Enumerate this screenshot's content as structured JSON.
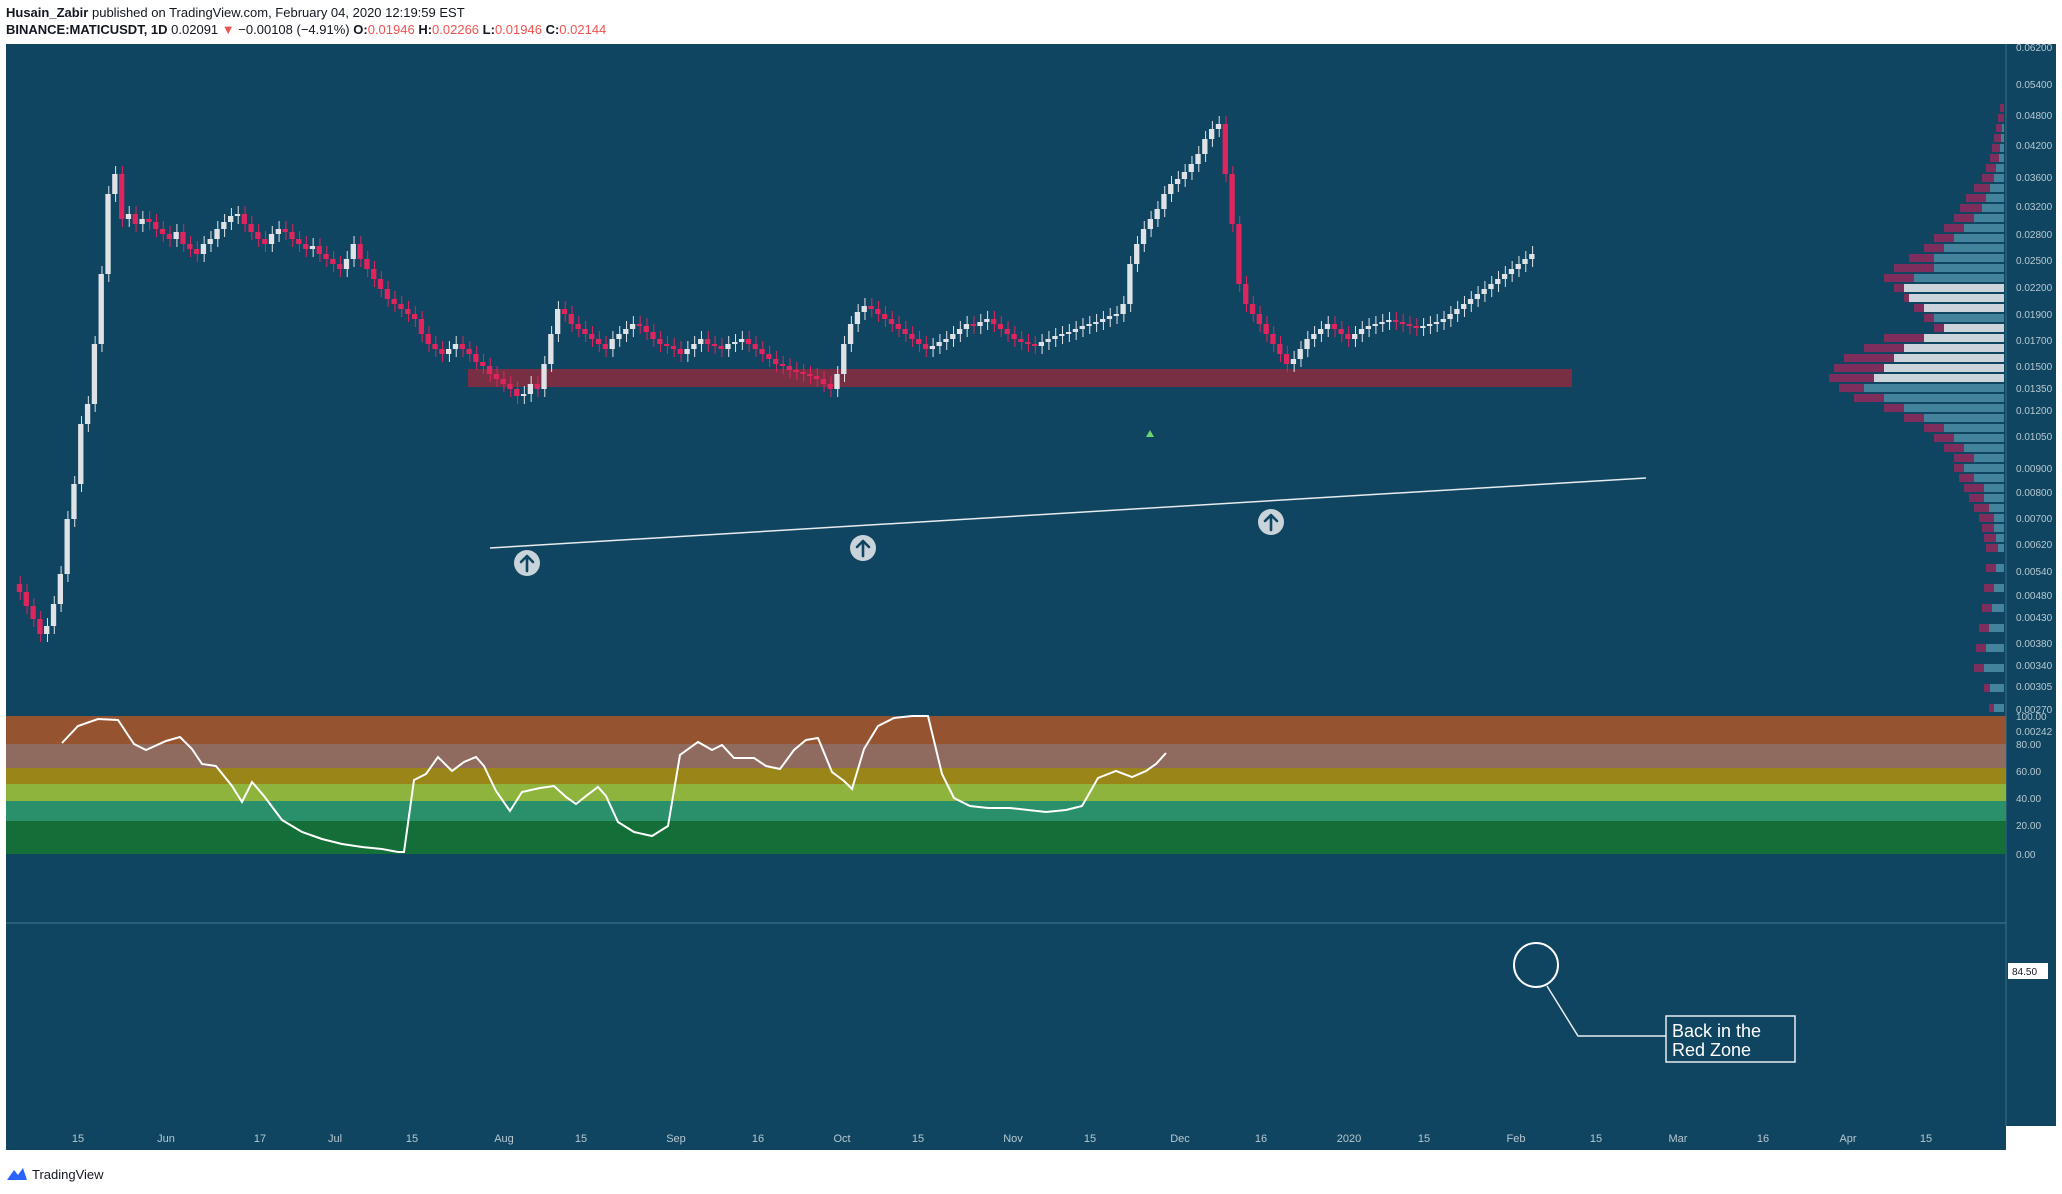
{
  "header": {
    "author": "Husain_Zabir",
    "published": "published on TradingView.com, February 04, 2020 12:19:59 EST",
    "symbol": "BINANCE:MATICUSDT, 1D",
    "last": "0.02091",
    "arrow": "▼",
    "change": "−0.00108 (−4.91%)",
    "open_label": "O:",
    "open": "0.01946",
    "high_label": "H:",
    "high": "0.02266",
    "low_label": "L:",
    "low": "0.01946",
    "close_label": "C:",
    "close": "0.02144"
  },
  "colors": {
    "background": "#0f4560",
    "bull": "#dfe3e8",
    "bear": "#e0245e",
    "resistance": "#8b2b3f",
    "rsi_bands": [
      "#95532f",
      "#8f6a5e",
      "#9a8518",
      "#8fb43e",
      "#2a8f6b",
      "#136e37"
    ]
  },
  "price_axis": [
    "0.06200",
    "0.05400",
    "0.04800",
    "0.04200",
    "0.03600",
    "0.03200",
    "0.02800",
    "0.02500",
    "0.02200",
    "0.01900",
    "0.01700",
    "0.01500",
    "0.01350",
    "0.01200",
    "0.01050",
    "0.00900",
    "0.00800",
    "0.00700",
    "0.00620",
    "0.00540",
    "0.00480",
    "0.00430",
    "0.00380",
    "0.00340",
    "0.00305",
    "0.00270",
    "0.00242"
  ],
  "rsi_axis": [
    "100.00",
    "80.00",
    "60.00",
    "40.00",
    "20.00",
    "0.00"
  ],
  "rsi_value": "84.50",
  "time_axis": [
    "15",
    "Jun",
    "17",
    "Jul",
    "15",
    "Aug",
    "15",
    "Sep",
    "16",
    "Oct",
    "15",
    "Nov",
    "15",
    "Dec",
    "16",
    "2020",
    "15",
    "Feb",
    "15",
    "Mar",
    "16",
    "Apr",
    "15"
  ],
  "annotation": {
    "line1": "Back in the",
    "line2": "Red Zone"
  },
  "footer": {
    "brand": "TradingView"
  }
}
